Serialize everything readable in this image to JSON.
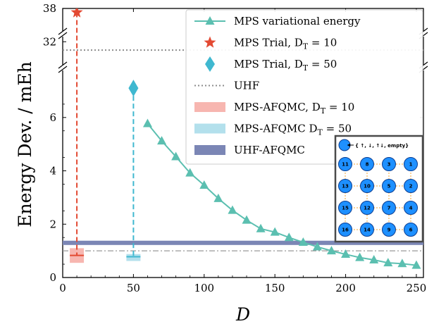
{
  "chart_data": {
    "type": "line",
    "xlabel": "D",
    "ylabel": "Energy Dev. / mEh",
    "xlim": [
      0,
      255
    ],
    "x_ticks": [
      "0",
      "50",
      "100",
      "150",
      "200",
      "250"
    ],
    "y_ticks_lower": [
      "0",
      "2",
      "4",
      "6"
    ],
    "y_ticks_upper": [
      "32",
      "38"
    ],
    "ylim_lower": [
      0,
      7.5
    ],
    "ylim_upper": [
      30,
      38
    ],
    "broken_axis": true,
    "legend_position": "top-right",
    "series": [
      {
        "name": "MPS variational energy",
        "color": "#5bbfb0",
        "marker": "triangle",
        "x": [
          60,
          70,
          80,
          90,
          100,
          110,
          120,
          130,
          140,
          150,
          160,
          170,
          180,
          190,
          200,
          210,
          220,
          230,
          240,
          250
        ],
        "y": [
          5.77,
          5.12,
          4.53,
          3.92,
          3.46,
          2.96,
          2.52,
          2.15,
          1.83,
          1.7,
          1.5,
          1.32,
          1.15,
          1.0,
          0.87,
          0.75,
          0.66,
          0.55,
          0.52,
          0.46
        ]
      },
      {
        "name": "MPS Trial, D_T = 10",
        "color": "#e34a33",
        "marker": "star",
        "x": [
          10
        ],
        "y": [
          37.3
        ]
      },
      {
        "name": "MPS Trial, D_T = 50",
        "color": "#3fb8d0",
        "marker": "diamond",
        "x": [
          50
        ],
        "y": [
          7.1
        ]
      },
      {
        "name": "UHF",
        "color": "#8c8c8c",
        "style": "dotted",
        "y": 30.5
      },
      {
        "name": "MPS-AFQMC, D_T = 10",
        "color": "#f7b6b0",
        "x": [
          10
        ],
        "y": [
          0.83
        ],
        "band": [
          0.55,
          1.1
        ]
      },
      {
        "name": "MPS-AFQMC D_T = 50",
        "color": "#b3e0ec",
        "x": [
          50
        ],
        "y": [
          0.78
        ],
        "band": [
          0.62,
          0.88
        ]
      },
      {
        "name": "UHF-AFQMC",
        "color": "#7b86b5",
        "y": 1.3,
        "band": [
          1.22,
          1.38
        ]
      }
    ],
    "reference_line": {
      "y": 1.0,
      "style": "dash-dot",
      "color": "#999999"
    }
  },
  "legend": {
    "items": [
      {
        "main": "MPS variational energy",
        "sub": ""
      },
      {
        "main": "MPS Trial, D",
        "sub": "T",
        "tail": " = 10"
      },
      {
        "main": "MPS Trial, D",
        "sub": "T",
        "tail": " = 50"
      },
      {
        "main": "UHF",
        "sub": ""
      },
      {
        "main": "MPS-AFQMC, D",
        "sub": "T",
        "tail": " = 10"
      },
      {
        "main": "MPS-AFQMC D",
        "sub": "T",
        "tail": " = 50"
      },
      {
        "main": "UHF-AFQMC",
        "sub": ""
      }
    ]
  },
  "inset": {
    "state_label": "{ ↑, ↓, ↑↓, empty}",
    "grid": [
      [
        "11",
        "8",
        "3",
        "1"
      ],
      [
        "13",
        "10",
        "5",
        "2"
      ],
      [
        "15",
        "12",
        "7",
        "4"
      ],
      [
        "16",
        "14",
        "9",
        "6"
      ]
    ]
  }
}
